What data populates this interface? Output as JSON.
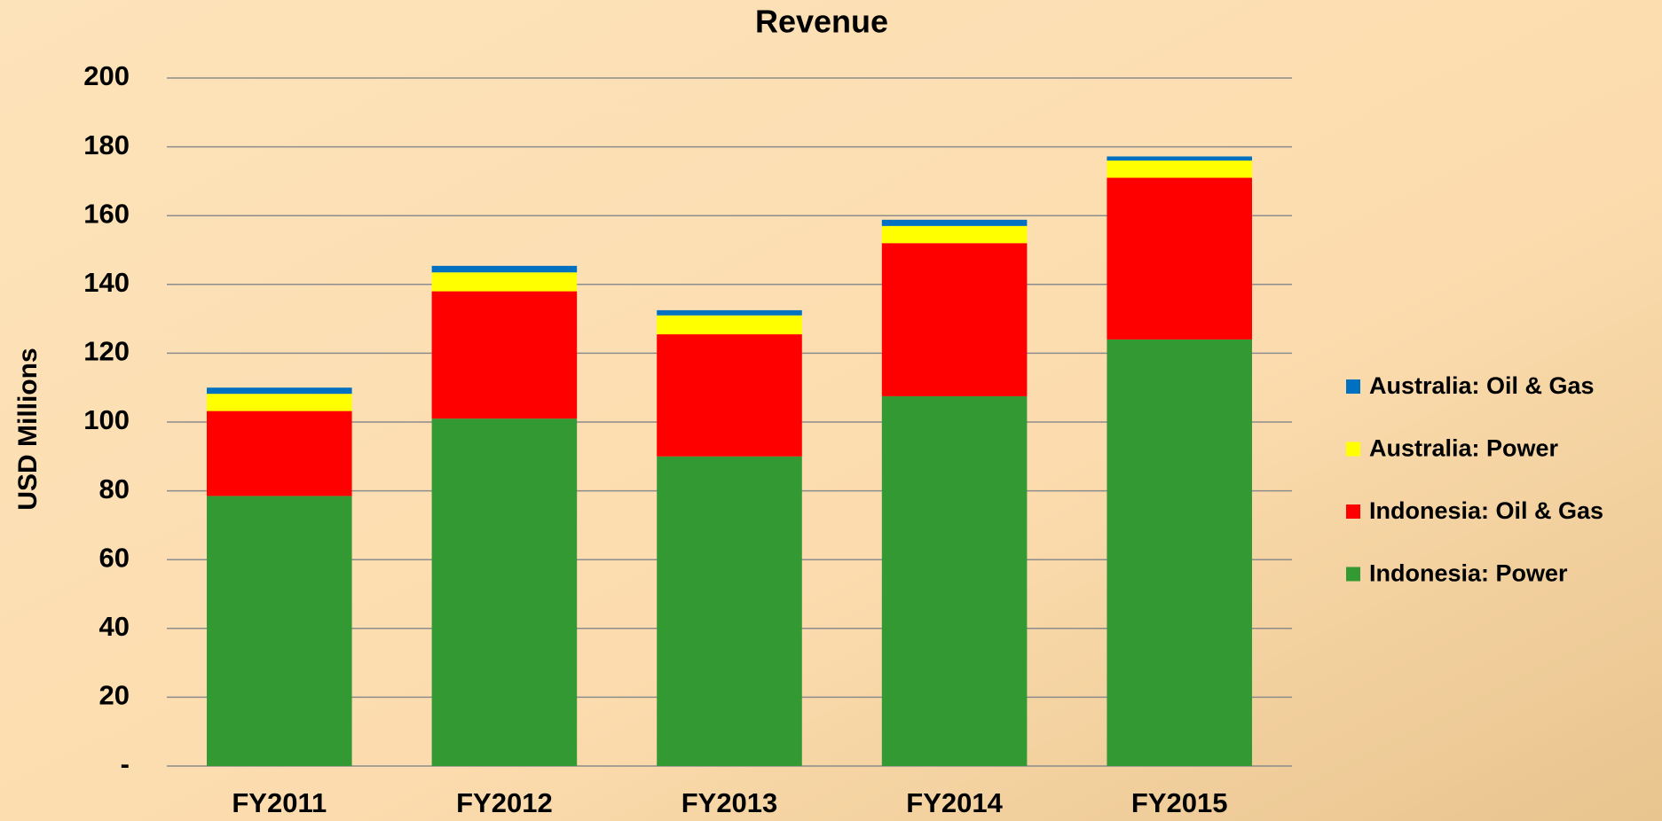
{
  "chart_data": {
    "type": "stacked-bar",
    "title": "Revenue",
    "y_label": "USD Millions",
    "categories": [
      "FY2011",
      "FY2012",
      "FY2013",
      "FY2014",
      "FY2015"
    ],
    "series": [
      {
        "name": "Indonesia: Power",
        "color": "#339933",
        "values": [
          78.5,
          101,
          90,
          107.5,
          124
        ]
      },
      {
        "name": "Indonesia: Oil & Gas",
        "color": "#ff0000",
        "values": [
          24.7,
          37,
          35.5,
          44.5,
          47
        ]
      },
      {
        "name": "Australia: Power",
        "color": "#ffff00",
        "values": [
          5,
          5.5,
          5.5,
          5,
          5
        ]
      },
      {
        "name": "Australia: Oil & Gas",
        "color": "#0070c0",
        "values": [
          1.8,
          1.9,
          1.5,
          1.8,
          1.2
        ]
      }
    ],
    "ylim": [
      0,
      200
    ],
    "yticks": [
      {
        "value": 0,
        "label": "-"
      },
      20,
      40,
      60,
      80,
      100,
      120,
      140,
      160,
      180,
      200
    ],
    "grid": true,
    "legend_position": "right"
  }
}
